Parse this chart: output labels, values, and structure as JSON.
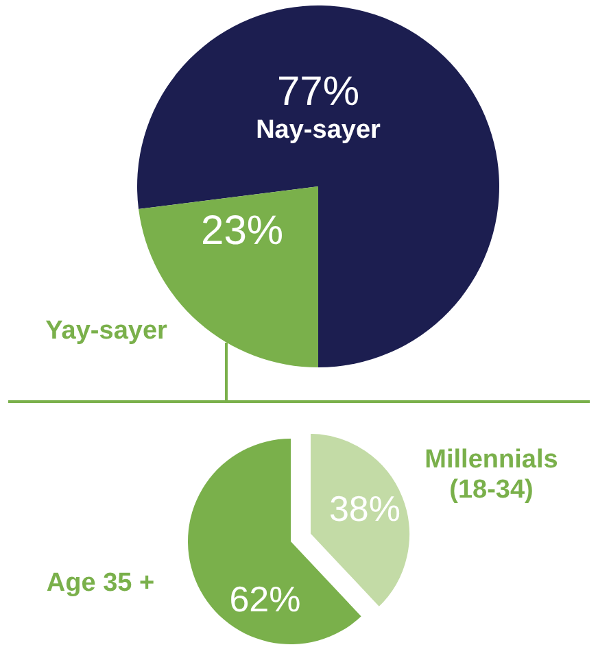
{
  "chart_data": [
    {
      "type": "pie",
      "categories": [
        "Nay-sayer",
        "Yay-sayer"
      ],
      "values": [
        77,
        23
      ],
      "colors": [
        "#1c1e50",
        "#7ab04b"
      ],
      "value_labels": [
        "77%",
        "23%"
      ]
    },
    {
      "type": "pie",
      "categories": [
        "Millennials (18-34)",
        "Age 35 +"
      ],
      "values": [
        38,
        62
      ],
      "colors": [
        "#c3dba6",
        "#7ab04b"
      ],
      "value_labels": [
        "38%",
        "62%"
      ]
    }
  ]
}
